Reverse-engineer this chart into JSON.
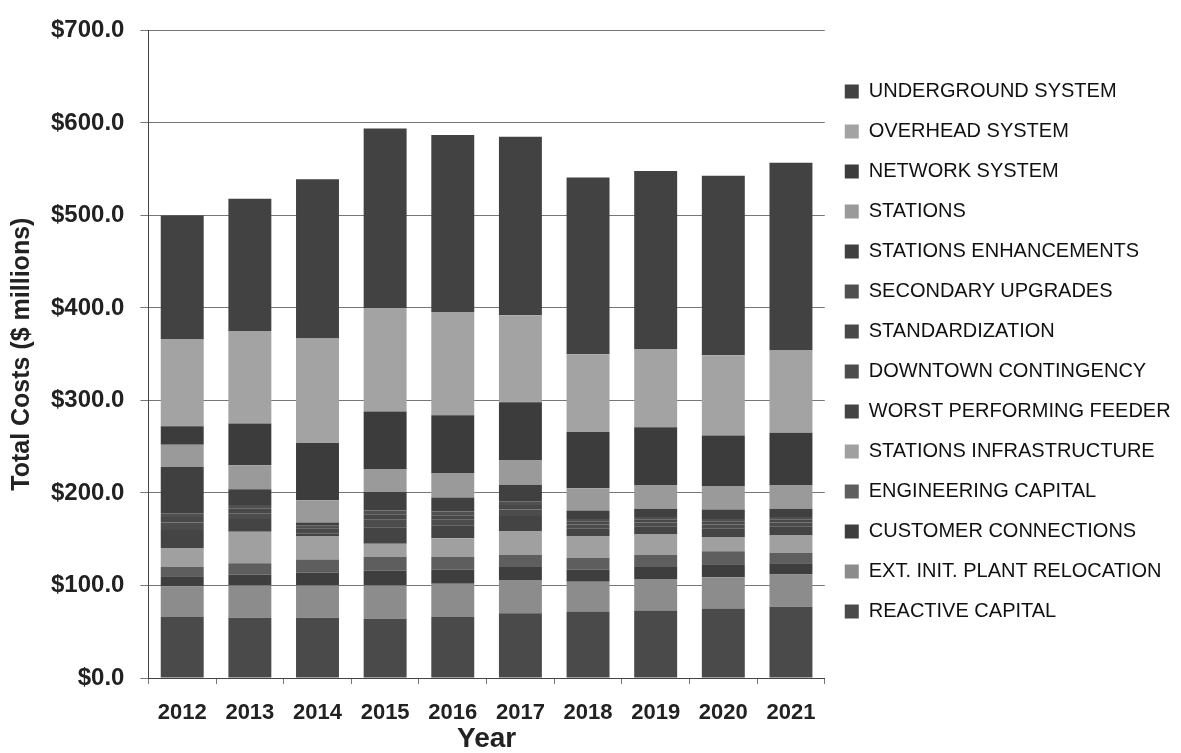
{
  "chart_data": {
    "type": "bar",
    "stacked": true,
    "xlabel": "Year",
    "ylabel": "Total Costs ($ millions)",
    "categories": [
      "2012",
      "2013",
      "2014",
      "2015",
      "2016",
      "2017",
      "2018",
      "2019",
      "2020",
      "2021"
    ],
    "ylim": [
      0,
      700
    ],
    "yticks": [
      {
        "value": 0,
        "label": "$0.0"
      },
      {
        "value": 100,
        "label": "$100.0"
      },
      {
        "value": 200,
        "label": "$200.0"
      },
      {
        "value": 300,
        "label": "$300.0"
      },
      {
        "value": 400,
        "label": "$400.0"
      },
      {
        "value": 500,
        "label": "$500.0"
      },
      {
        "value": 600,
        "label": "$600.0"
      },
      {
        "value": 700,
        "label": "$700.0"
      }
    ],
    "grid": "y",
    "legend": "right",
    "series": [
      {
        "name": "REACTIVE CAPITAL",
        "color": "#4a4a4a",
        "values": [
          66,
          65,
          65,
          64,
          66,
          70,
          72,
          73,
          75,
          77
        ]
      },
      {
        "name": "EXT. INIT. PLANT RELOCATION",
        "color": "#8c8c8c",
        "values": [
          33,
          35,
          35,
          36,
          36,
          36,
          32,
          34,
          34,
          35
        ]
      },
      {
        "name": "CUSTOMER CONNECTIONS",
        "color": "#3e3e3e",
        "values": [
          11,
          12,
          14,
          16,
          15,
          14,
          13,
          13,
          14,
          12
        ]
      },
      {
        "name": "ENGINEERING CAPITAL",
        "color": "#5e5e5e",
        "values": [
          10,
          12,
          14,
          15,
          14,
          13,
          13,
          13,
          14,
          11
        ]
      },
      {
        "name": "STATIONS INFRASTRUCTURE",
        "color": "#a0a0a0",
        "values": [
          20,
          34,
          25,
          14,
          20,
          26,
          23,
          22,
          15,
          19
        ]
      },
      {
        "name": "WORST PERFORMING FEEDER",
        "color": "#444444",
        "values": [
          20,
          14,
          3,
          18,
          14,
          16,
          9,
          9,
          10,
          10
        ]
      },
      {
        "name": "DOWNTOWN CONTINGENCY",
        "color": "#4c4c4c",
        "values": [
          8,
          6,
          3,
          8,
          6,
          7,
          4,
          4,
          4,
          4
        ]
      },
      {
        "name": "STANDARDIZATION",
        "color": "#484848",
        "values": [
          6,
          5,
          3,
          6,
          5,
          5,
          3,
          3,
          3,
          3
        ]
      },
      {
        "name": "SECONDARY UPGRADES",
        "color": "#505050",
        "values": [
          4,
          4,
          3,
          4,
          4,
          4,
          3,
          3,
          3,
          3
        ]
      },
      {
        "name": "STATIONS ENHANCEMENTS",
        "color": "#404040",
        "values": [
          50,
          17,
          3,
          20,
          15,
          18,
          9,
          9,
          10,
          9
        ]
      },
      {
        "name": "STATIONS",
        "color": "#9a9a9a",
        "values": [
          24,
          26,
          24,
          25,
          26,
          26,
          24,
          25,
          25,
          25
        ]
      },
      {
        "name": "NETWORK SYSTEM",
        "color": "#3c3c3c",
        "values": [
          20,
          45,
          62,
          62,
          63,
          63,
          61,
          63,
          55,
          57
        ]
      },
      {
        "name": "OVERHEAD SYSTEM",
        "color": "#a3a3a3",
        "values": [
          94,
          100,
          113,
          112,
          111,
          94,
          84,
          84,
          87,
          89
        ]
      },
      {
        "name": "UNDERGROUND SYSTEM",
        "color": "#424242",
        "values": [
          134,
          143,
          172,
          194,
          192,
          193,
          191,
          193,
          194,
          203
        ]
      }
    ]
  }
}
